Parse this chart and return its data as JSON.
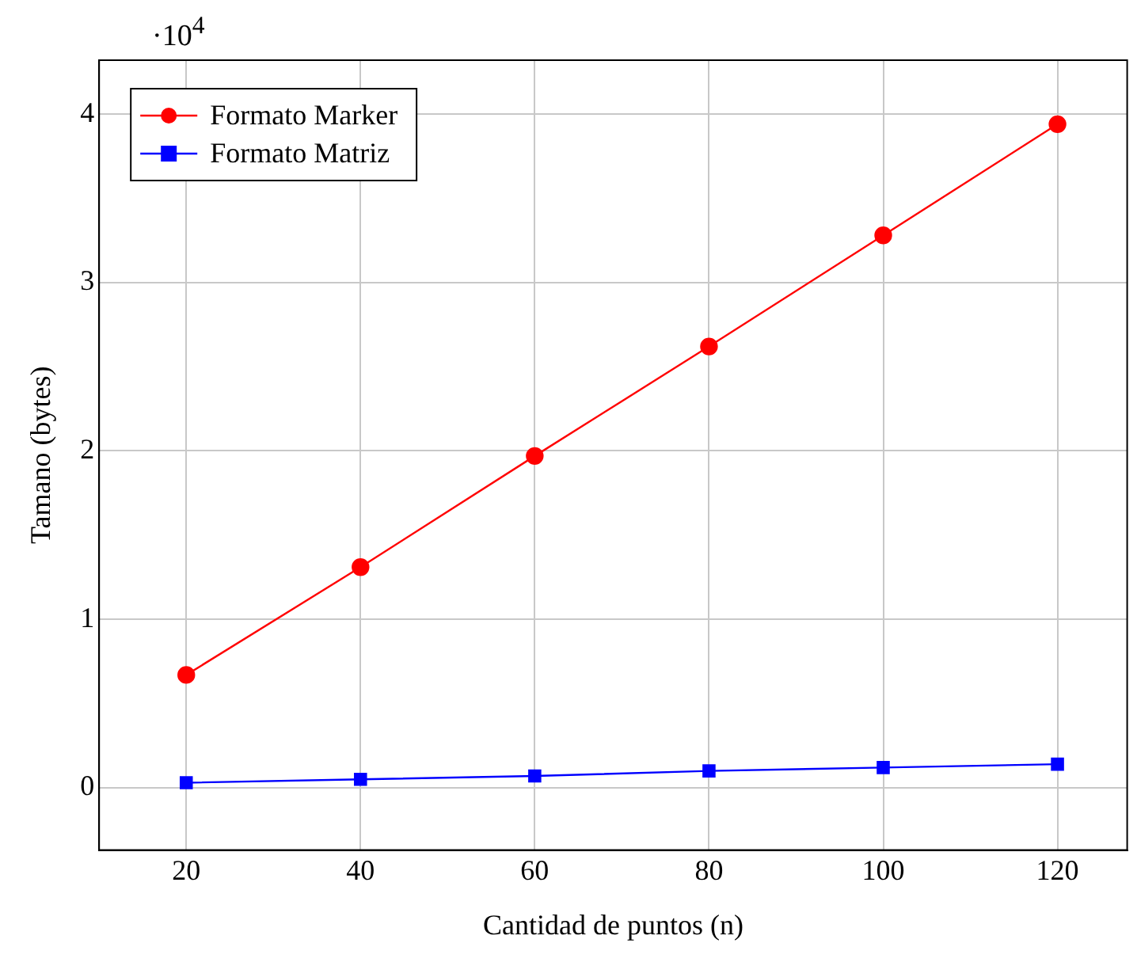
{
  "chart_data": {
    "type": "line",
    "xlabel": "Cantidad de puntos (n)",
    "ylabel": "Tamano (bytes)",
    "x": [
      20,
      40,
      60,
      80,
      100,
      120
    ],
    "series": [
      {
        "name": "Formato Marker",
        "color": "#ff0000",
        "marker": "circle",
        "values": [
          0.67,
          1.31,
          1.97,
          2.62,
          3.28,
          3.94
        ]
      },
      {
        "name": "Formato Matriz",
        "color": "#0000ff",
        "marker": "square",
        "values": [
          0.03,
          0.05,
          0.07,
          0.1,
          0.12,
          0.14
        ]
      }
    ],
    "xlim": [
      10,
      128
    ],
    "xticks": [
      20,
      40,
      60,
      80,
      100,
      120
    ],
    "ylim": [
      -0.37,
      4.32
    ],
    "yticks": [
      0,
      1,
      2,
      3,
      4
    ],
    "annotations": [
      "·10$^{4}$"
    ],
    "grid": true,
    "legend": "top left",
    "line_style": "solid"
  }
}
